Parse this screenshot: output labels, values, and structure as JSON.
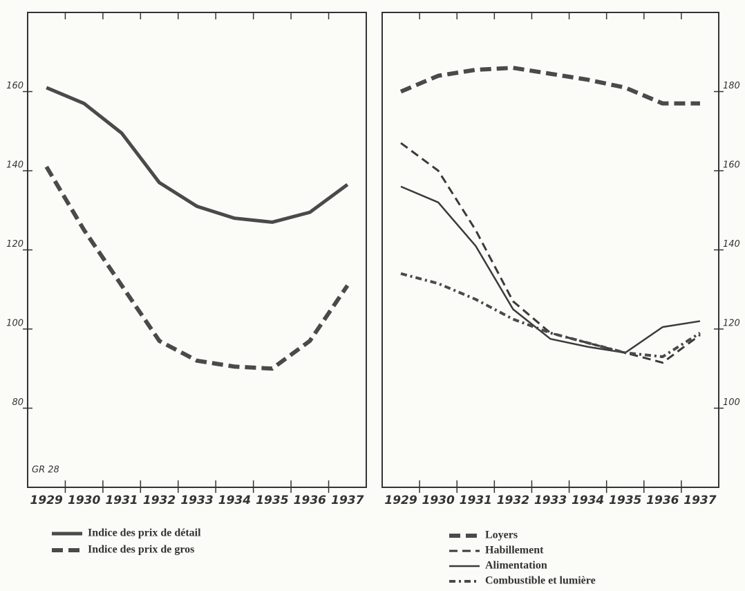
{
  "chart_data": [
    {
      "type": "line",
      "annotation": "GR 28",
      "categories": [
        "1929",
        "1930",
        "1931",
        "1932",
        "1933",
        "1934",
        "1935",
        "1936",
        "1937"
      ],
      "ylim": [
        60,
        180
      ],
      "yticks": [
        80,
        100,
        120,
        140,
        160
      ],
      "y_axis_side": "left",
      "series": [
        {
          "name": "Indice des prix de détail",
          "color": "#4a4a4a",
          "style": "solid-thick",
          "values": [
            161,
            157,
            149.5,
            137,
            131,
            128,
            127,
            129.5,
            136.5
          ]
        },
        {
          "name": "Indice des prix de gros",
          "color": "#4a4a4a",
          "style": "dashed-thick",
          "values": [
            141,
            125,
            111,
            97,
            92,
            90.5,
            90,
            97,
            111
          ]
        }
      ]
    },
    {
      "type": "line",
      "categories": [
        "1929",
        "1930",
        "1931",
        "1932",
        "1933",
        "1934",
        "1935",
        "1936",
        "1937"
      ],
      "ylim": [
        80,
        200
      ],
      "yticks": [
        100,
        120,
        140,
        160,
        180
      ],
      "y_axis_side": "right",
      "series": [
        {
          "name": "Loyers",
          "color": "#4a4a4a",
          "style": "dashed-thick",
          "values": [
            180,
            184,
            185.5,
            186,
            184.5,
            183,
            181,
            177,
            177
          ]
        },
        {
          "name": "Habillement",
          "color": "#3a3a3a",
          "style": "dashed",
          "values": [
            167,
            160,
            145,
            127,
            119,
            116.5,
            114,
            111.5,
            118.5
          ]
        },
        {
          "name": "Alimentation",
          "color": "#3a3a3a",
          "style": "solid",
          "values": [
            156,
            152,
            141,
            125,
            117.5,
            115.5,
            114,
            120.5,
            122
          ]
        },
        {
          "name": "Combustible et lumière",
          "color": "#4a4a4a",
          "style": "dash-dot",
          "values": [
            134,
            131.5,
            127.5,
            122.5,
            119,
            116.5,
            114,
            113,
            119
          ]
        }
      ]
    }
  ]
}
